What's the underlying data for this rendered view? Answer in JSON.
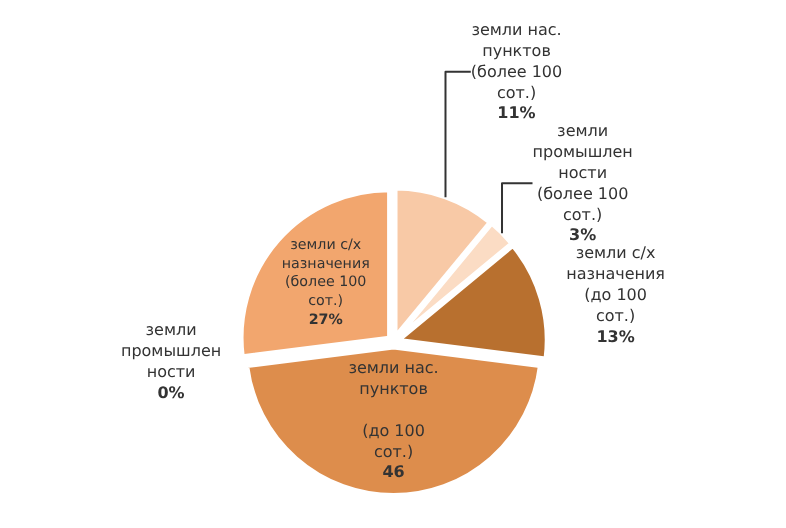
{
  "chart_data": {
    "type": "pie",
    "categories": [
      "земли нас.\nпунктов\n(более 100\nсот.)",
      "земли\nпромышлен\nности\n(более 100\nсот.)",
      "земли с/х\nназначения\n(до 100\nсот.)",
      "земли нас.\nпунктов\n\n(до 100\nсот.)",
      "земли\nпромышлен\nности",
      "земли с/х\nназначения\n(более 100\nсот.)"
    ],
    "values": [
      11,
      3,
      13,
      46,
      0,
      27
    ],
    "value_labels": [
      "11%",
      "3%",
      "13%",
      "46",
      "0%",
      "27%"
    ],
    "colors": [
      "#f8c9a6",
      "#fbdcc4",
      "#b8702f",
      "#dd8d4c",
      "#c06a2c",
      "#f2a66e"
    ],
    "legend": false
  }
}
